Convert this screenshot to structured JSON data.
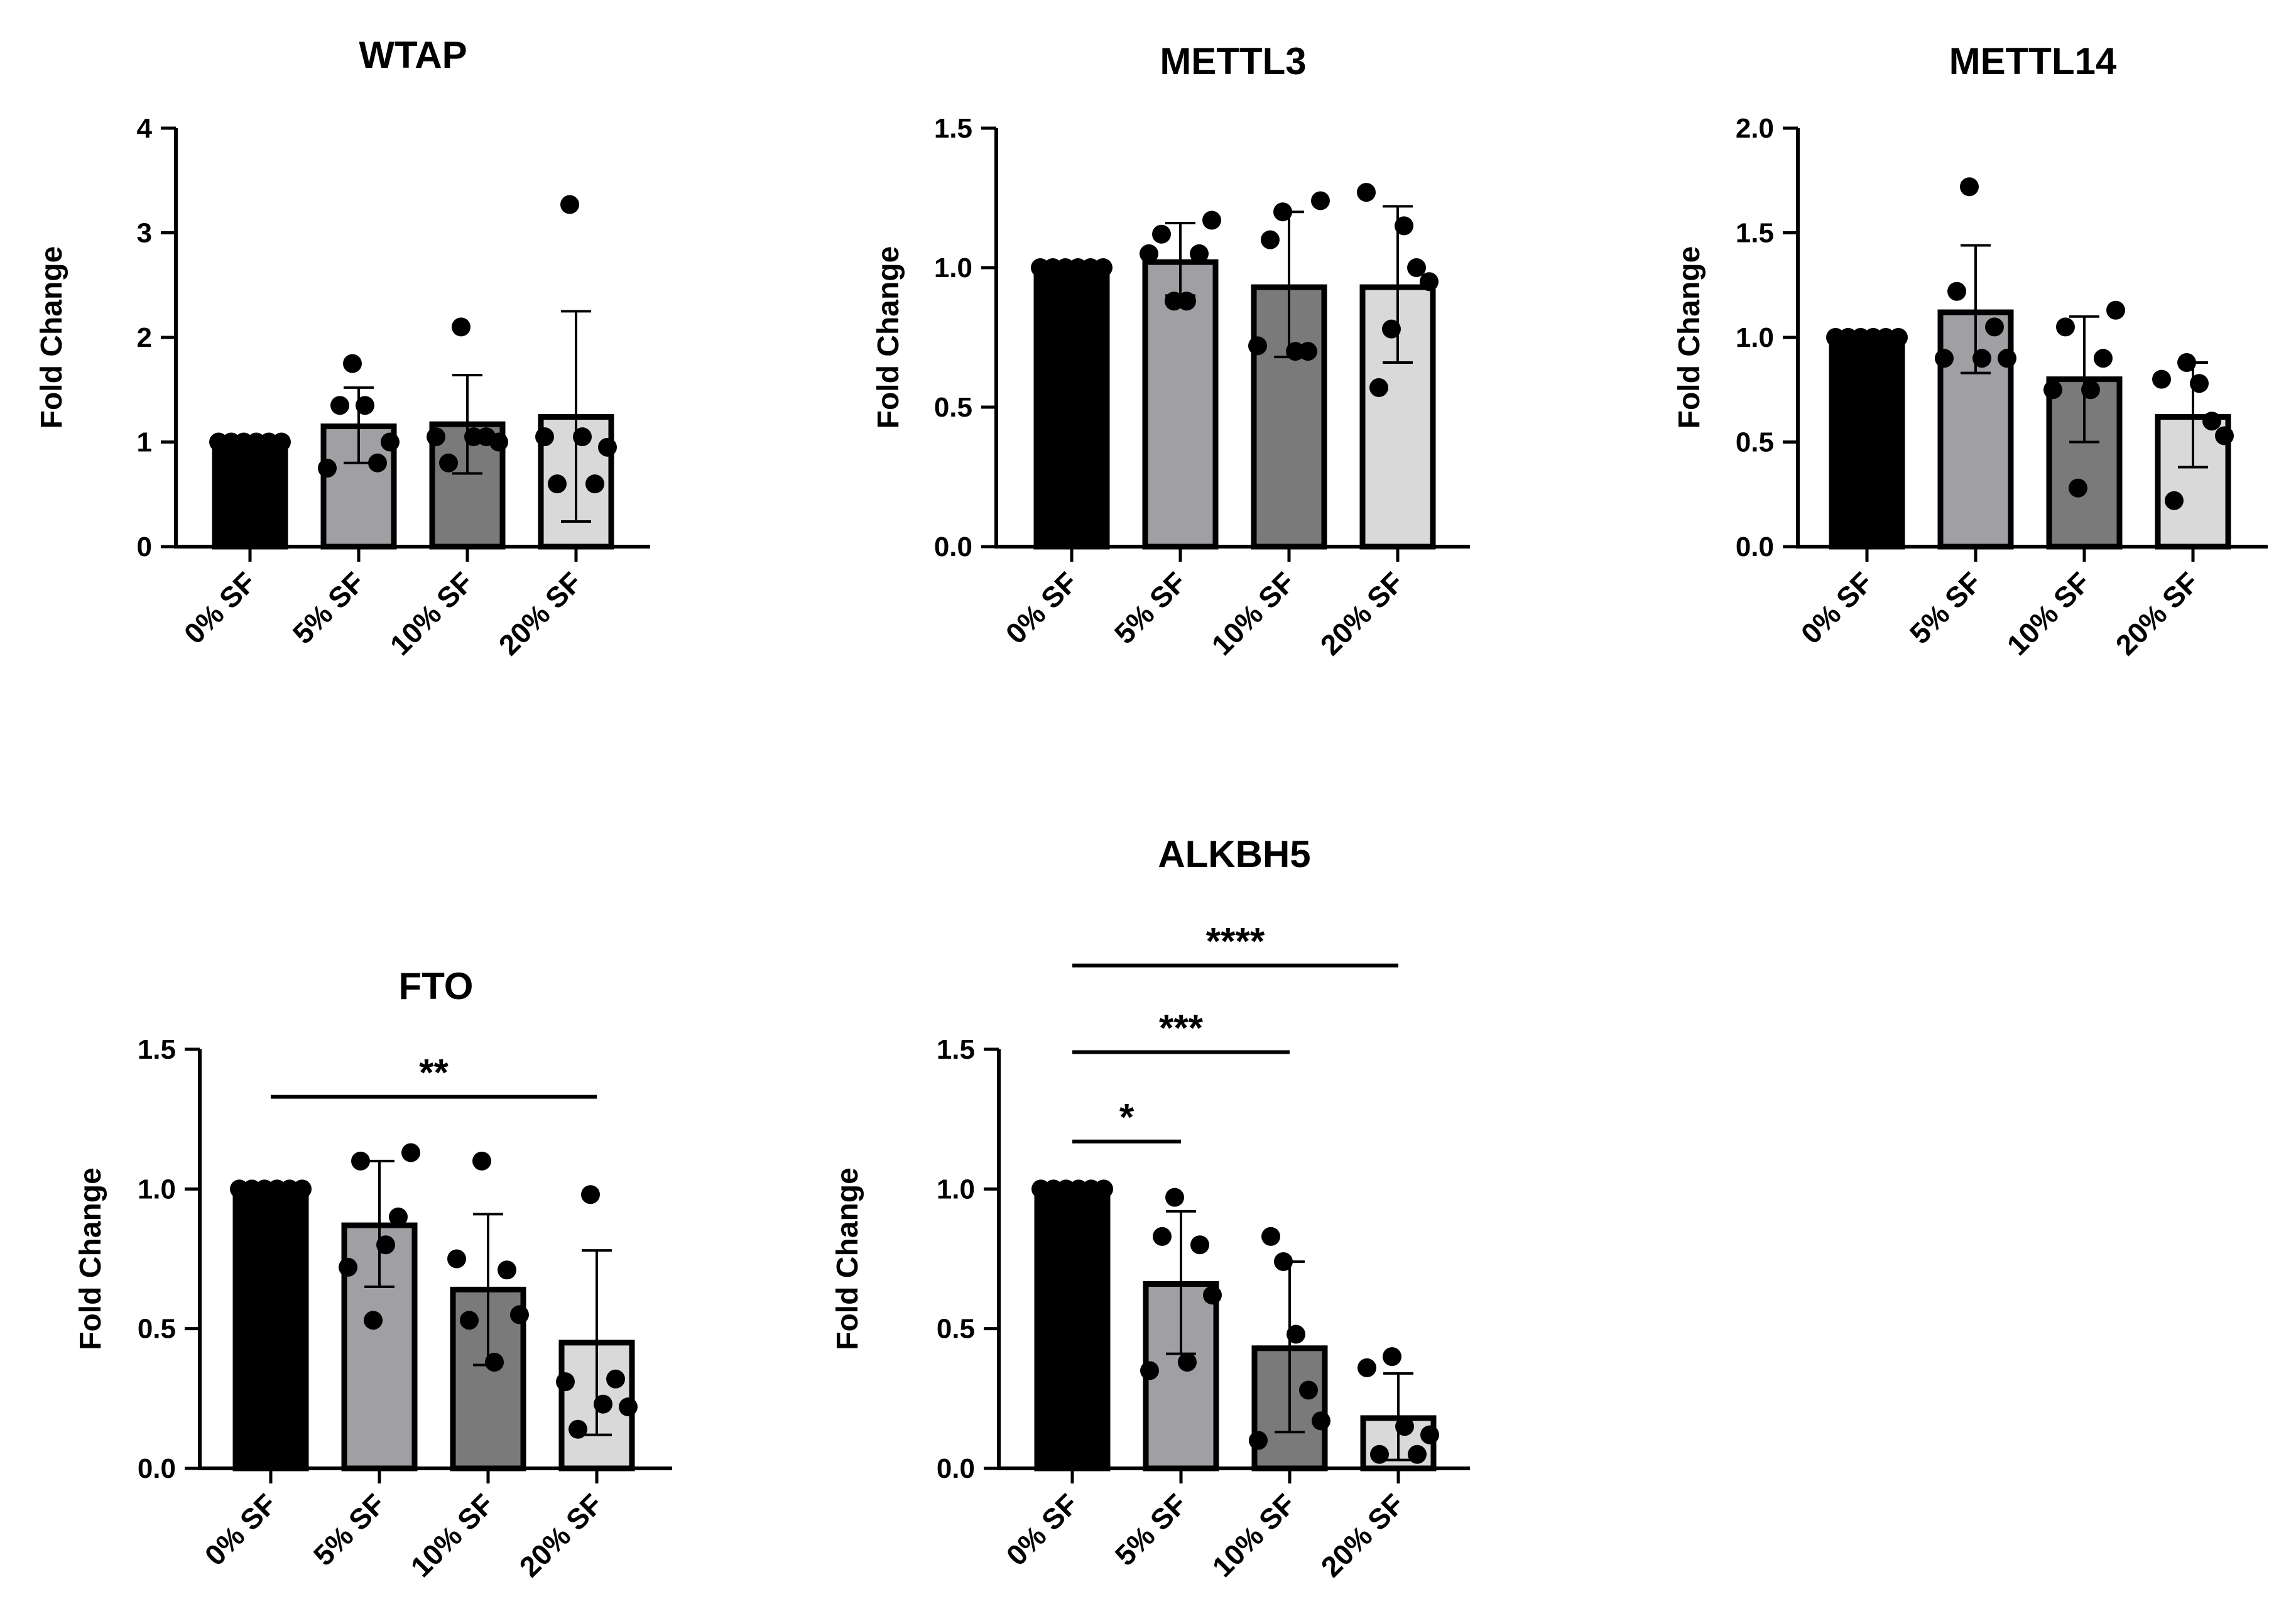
{
  "chart_data": [
    {
      "type": "bar",
      "title": "WTAP",
      "ylabel": "Fold Change",
      "xlabel": "",
      "ylim": [
        0,
        4
      ],
      "yticks": [
        0,
        1,
        2,
        3,
        4
      ],
      "ytick_labels": [
        "0",
        "1",
        "2",
        "3",
        "4"
      ],
      "categories": [
        "0% SF",
        "5% SF",
        "10% SF",
        "20% SF"
      ],
      "fills": [
        "#000000",
        "#a0a0a4",
        "#7a7a7a",
        "#d9d9d9"
      ],
      "values": [
        1.0,
        1.15,
        1.17,
        1.24
      ],
      "err_upper": [
        1.0,
        1.52,
        1.64,
        2.25
      ],
      "err_lower": [
        1.0,
        0.8,
        0.7,
        0.24
      ],
      "points": [
        [
          1.0,
          1.0,
          1.0,
          1.0,
          1.0,
          1.0
        ],
        [
          0.75,
          1.35,
          1.75,
          1.35,
          0.8,
          1.0
        ],
        [
          1.05,
          0.8,
          2.1,
          1.05,
          1.05,
          1.0
        ],
        [
          1.05,
          0.6,
          3.27,
          1.05,
          0.6,
          0.95
        ]
      ],
      "significance": []
    },
    {
      "type": "bar",
      "title": "METTL3",
      "ylabel": "Fold Change",
      "xlabel": "",
      "ylim": [
        0,
        1.5
      ],
      "yticks": [
        0,
        0.5,
        1.0,
        1.5
      ],
      "ytick_labels": [
        "0.0",
        "0.5",
        "1.0",
        "1.5"
      ],
      "categories": [
        "0% SF",
        "5% SF",
        "10% SF",
        "20% SF"
      ],
      "fills": [
        "#000000",
        "#a0a0a4",
        "#7a7a7a",
        "#d9d9d9"
      ],
      "values": [
        1.0,
        1.02,
        0.93,
        0.93
      ],
      "err_upper": [
        1.0,
        1.16,
        1.2,
        1.22
      ],
      "err_lower": [
        1.0,
        0.9,
        0.68,
        0.66
      ],
      "points": [
        [
          1.0,
          1.0,
          1.0,
          1.0,
          1.0,
          1.0
        ],
        [
          1.05,
          1.12,
          0.88,
          0.88,
          1.05,
          1.17
        ],
        [
          0.72,
          1.1,
          1.2,
          0.7,
          0.7,
          1.24
        ],
        [
          1.27,
          0.57,
          0.78,
          1.15,
          1.0,
          0.95
        ]
      ],
      "significance": []
    },
    {
      "type": "bar",
      "title": "METTL14",
      "ylabel": "Fold Change",
      "xlabel": "",
      "ylim": [
        0,
        2.0
      ],
      "yticks": [
        0,
        0.5,
        1.0,
        1.5,
        2.0
      ],
      "ytick_labels": [
        "0.0",
        "0.5",
        "1.0",
        "1.5",
        "2.0"
      ],
      "categories": [
        "0% SF",
        "5% SF",
        "10% SF",
        "20% SF"
      ],
      "fills": [
        "#000000",
        "#a0a0a4",
        "#7a7a7a",
        "#d9d9d9"
      ],
      "values": [
        1.0,
        1.12,
        0.8,
        0.62
      ],
      "err_upper": [
        1.0,
        1.44,
        1.1,
        0.88
      ],
      "err_lower": [
        1.0,
        0.83,
        0.5,
        0.38
      ],
      "points": [
        [
          1.0,
          1.0,
          1.0,
          1.0,
          1.0,
          1.0
        ],
        [
          0.9,
          1.22,
          1.72,
          0.9,
          1.05,
          0.9
        ],
        [
          0.75,
          1.05,
          0.28,
          0.75,
          0.9,
          1.13
        ],
        [
          0.8,
          0.22,
          0.88,
          0.78,
          0.6,
          0.53
        ]
      ],
      "significance": []
    },
    {
      "type": "bar",
      "title": "FTO",
      "ylabel": "Fold Change",
      "xlabel": "",
      "ylim": [
        0,
        1.5
      ],
      "yticks": [
        0,
        0.5,
        1.0,
        1.5
      ],
      "ytick_labels": [
        "0.0",
        "0.5",
        "1.0",
        "1.5"
      ],
      "categories": [
        "0% SF",
        "5% SF",
        "10% SF",
        "20% SF"
      ],
      "fills": [
        "#000000",
        "#a0a0a4",
        "#7a7a7a",
        "#d9d9d9"
      ],
      "values": [
        1.0,
        0.87,
        0.64,
        0.45
      ],
      "err_upper": [
        1.0,
        1.1,
        0.91,
        0.78
      ],
      "err_lower": [
        1.0,
        0.65,
        0.37,
        0.12
      ],
      "points": [
        [
          1.0,
          1.0,
          1.0,
          1.0,
          1.0,
          1.0
        ],
        [
          0.72,
          1.1,
          0.53,
          0.8,
          0.9,
          1.13
        ],
        [
          0.75,
          0.53,
          1.1,
          0.38,
          0.71,
          0.55
        ],
        [
          0.31,
          0.14,
          0.98,
          0.23,
          0.32,
          0.22
        ]
      ],
      "significance": [
        {
          "from": 0,
          "to": 3,
          "value": 1.33,
          "label": "**"
        }
      ]
    },
    {
      "type": "bar",
      "title": "ALKBH5",
      "ylabel": "Fold Change",
      "xlabel": "",
      "ylim": [
        0,
        1.5
      ],
      "yticks": [
        0,
        0.5,
        1.0,
        1.5
      ],
      "ytick_labels": [
        "0.0",
        "0.5",
        "1.0",
        "1.5"
      ],
      "categories": [
        "0% SF",
        "5% SF",
        "10% SF",
        "20% SF"
      ],
      "fills": [
        "#000000",
        "#a0a0a4",
        "#7a7a7a",
        "#d9d9d9"
      ],
      "values": [
        1.0,
        0.66,
        0.43,
        0.18
      ],
      "err_upper": [
        1.0,
        0.92,
        0.74,
        0.34
      ],
      "err_lower": [
        1.0,
        0.41,
        0.13,
        0.03
      ],
      "points": [
        [
          1.0,
          1.0,
          1.0,
          1.0,
          1.0,
          1.0
        ],
        [
          0.35,
          0.83,
          0.97,
          0.38,
          0.8,
          0.62
        ],
        [
          0.1,
          0.83,
          0.74,
          0.48,
          0.28,
          0.17
        ],
        [
          0.36,
          0.05,
          0.4,
          0.15,
          0.05,
          0.12
        ]
      ],
      "significance": [
        {
          "from": 0,
          "to": 1,
          "value": 1.17,
          "label": "*"
        },
        {
          "from": 0,
          "to": 2,
          "value": 1.49,
          "label": "***"
        },
        {
          "from": 0,
          "to": 3,
          "value": 1.8,
          "label": "****"
        }
      ]
    }
  ]
}
